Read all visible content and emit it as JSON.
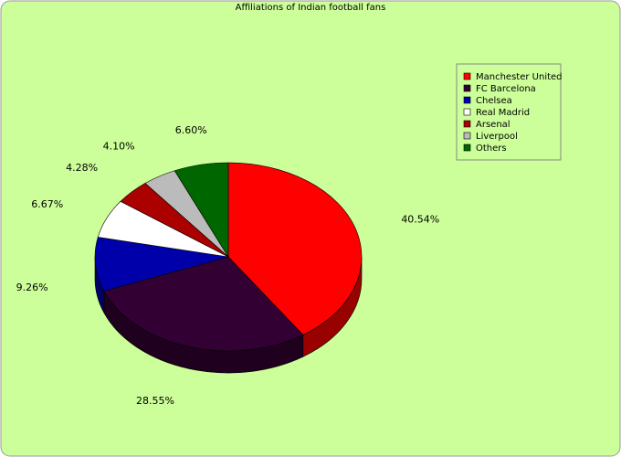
{
  "chart_data": {
    "type": "pie",
    "title": "Affiliations of Indian football fans",
    "slices": [
      {
        "label": "Manchester United",
        "value": 40.54,
        "display": "40.54%",
        "color": "#ff0000"
      },
      {
        "label": "FC Barcelona",
        "value": 28.55,
        "display": "28.55%",
        "color": "#330033"
      },
      {
        "label": "Chelsea",
        "value": 9.26,
        "display": "9.26%",
        "color": "#0000aa"
      },
      {
        "label": "Real Madrid",
        "value": 6.67,
        "display": "6.67%",
        "color": "#ffffff"
      },
      {
        "label": "Arsenal",
        "value": 4.28,
        "display": "4.28%",
        "color": "#aa0000"
      },
      {
        "label": "Liverpool",
        "value": 4.1,
        "display": "4.10%",
        "color": "#bbbbbb"
      },
      {
        "label": "Others",
        "value": 6.6,
        "display": "6.60%",
        "color": "#006600"
      }
    ],
    "legend_position": "top-right",
    "style": "3d-pie"
  },
  "colors": {
    "background": "#ccff99"
  }
}
